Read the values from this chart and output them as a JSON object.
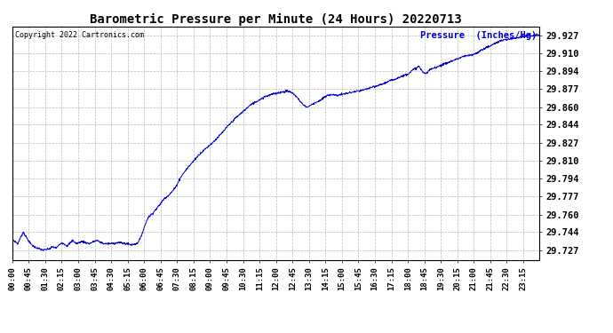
{
  "title": "Barometric Pressure per Minute (24 Hours) 20220713",
  "copyright": "Copyright 2022 Cartronics.com",
  "legend_label": "Pressure  (Inches/Hg)",
  "line_color": "#0000CC",
  "background_color": "#ffffff",
  "grid_color": "#aaaaaa",
  "yticks": [
    29.727,
    29.744,
    29.76,
    29.777,
    29.794,
    29.81,
    29.827,
    29.844,
    29.86,
    29.877,
    29.894,
    29.91,
    29.927
  ],
  "ylim": [
    29.718,
    29.935
  ],
  "xtick_labels": [
    "00:00",
    "00:45",
    "01:30",
    "02:15",
    "03:00",
    "03:45",
    "04:30",
    "05:15",
    "06:00",
    "06:45",
    "07:30",
    "08:15",
    "09:00",
    "09:45",
    "10:30",
    "11:15",
    "12:00",
    "12:45",
    "13:30",
    "14:15",
    "15:00",
    "15:45",
    "16:30",
    "17:15",
    "18:00",
    "18:45",
    "19:30",
    "20:15",
    "21:00",
    "21:45",
    "22:30",
    "23:15"
  ],
  "control_points": [
    [
      0,
      29.737
    ],
    [
      15,
      29.733
    ],
    [
      30,
      29.744
    ],
    [
      40,
      29.738
    ],
    [
      50,
      29.733
    ],
    [
      60,
      29.73
    ],
    [
      75,
      29.728
    ],
    [
      85,
      29.727
    ],
    [
      100,
      29.728
    ],
    [
      110,
      29.73
    ],
    [
      120,
      29.729
    ],
    [
      135,
      29.734
    ],
    [
      150,
      29.731
    ],
    [
      165,
      29.736
    ],
    [
      175,
      29.733
    ],
    [
      190,
      29.735
    ],
    [
      210,
      29.733
    ],
    [
      230,
      29.736
    ],
    [
      250,
      29.733
    ],
    [
      270,
      29.733
    ],
    [
      290,
      29.734
    ],
    [
      310,
      29.733
    ],
    [
      325,
      29.732
    ],
    [
      340,
      29.733
    ],
    [
      350,
      29.738
    ],
    [
      360,
      29.748
    ],
    [
      370,
      29.757
    ],
    [
      385,
      29.762
    ],
    [
      400,
      29.768
    ],
    [
      415,
      29.775
    ],
    [
      430,
      29.779
    ],
    [
      445,
      29.785
    ],
    [
      460,
      29.795
    ],
    [
      475,
      29.802
    ],
    [
      490,
      29.808
    ],
    [
      510,
      29.816
    ],
    [
      530,
      29.822
    ],
    [
      550,
      29.828
    ],
    [
      570,
      29.835
    ],
    [
      590,
      29.843
    ],
    [
      610,
      29.85
    ],
    [
      630,
      29.856
    ],
    [
      650,
      29.862
    ],
    [
      670,
      29.866
    ],
    [
      690,
      29.87
    ],
    [
      710,
      29.872
    ],
    [
      720,
      29.873
    ],
    [
      735,
      29.874
    ],
    [
      750,
      29.875
    ],
    [
      760,
      29.874
    ],
    [
      770,
      29.872
    ],
    [
      780,
      29.868
    ],
    [
      795,
      29.862
    ],
    [
      805,
      29.86
    ],
    [
      815,
      29.862
    ],
    [
      825,
      29.864
    ],
    [
      840,
      29.866
    ],
    [
      855,
      29.87
    ],
    [
      870,
      29.872
    ],
    [
      885,
      29.871
    ],
    [
      900,
      29.872
    ],
    [
      915,
      29.873
    ],
    [
      930,
      29.874
    ],
    [
      945,
      29.875
    ],
    [
      960,
      29.876
    ],
    [
      975,
      29.878
    ],
    [
      990,
      29.879
    ],
    [
      1005,
      29.881
    ],
    [
      1020,
      29.883
    ],
    [
      1035,
      29.885
    ],
    [
      1050,
      29.887
    ],
    [
      1065,
      29.889
    ],
    [
      1080,
      29.891
    ],
    [
      1095,
      29.895
    ],
    [
      1110,
      29.898
    ],
    [
      1120,
      29.893
    ],
    [
      1130,
      29.891
    ],
    [
      1140,
      29.895
    ],
    [
      1155,
      29.897
    ],
    [
      1170,
      29.899
    ],
    [
      1185,
      29.901
    ],
    [
      1200,
      29.903
    ],
    [
      1215,
      29.905
    ],
    [
      1230,
      29.907
    ],
    [
      1245,
      29.908
    ],
    [
      1260,
      29.909
    ],
    [
      1275,
      29.912
    ],
    [
      1290,
      29.915
    ],
    [
      1305,
      29.917
    ],
    [
      1320,
      29.92
    ],
    [
      1335,
      29.922
    ],
    [
      1350,
      29.923
    ],
    [
      1365,
      29.924
    ],
    [
      1380,
      29.925
    ],
    [
      1395,
      29.926
    ],
    [
      1410,
      29.927
    ],
    [
      1420,
      29.926
    ],
    [
      1430,
      29.927
    ],
    [
      1439,
      29.927
    ]
  ]
}
